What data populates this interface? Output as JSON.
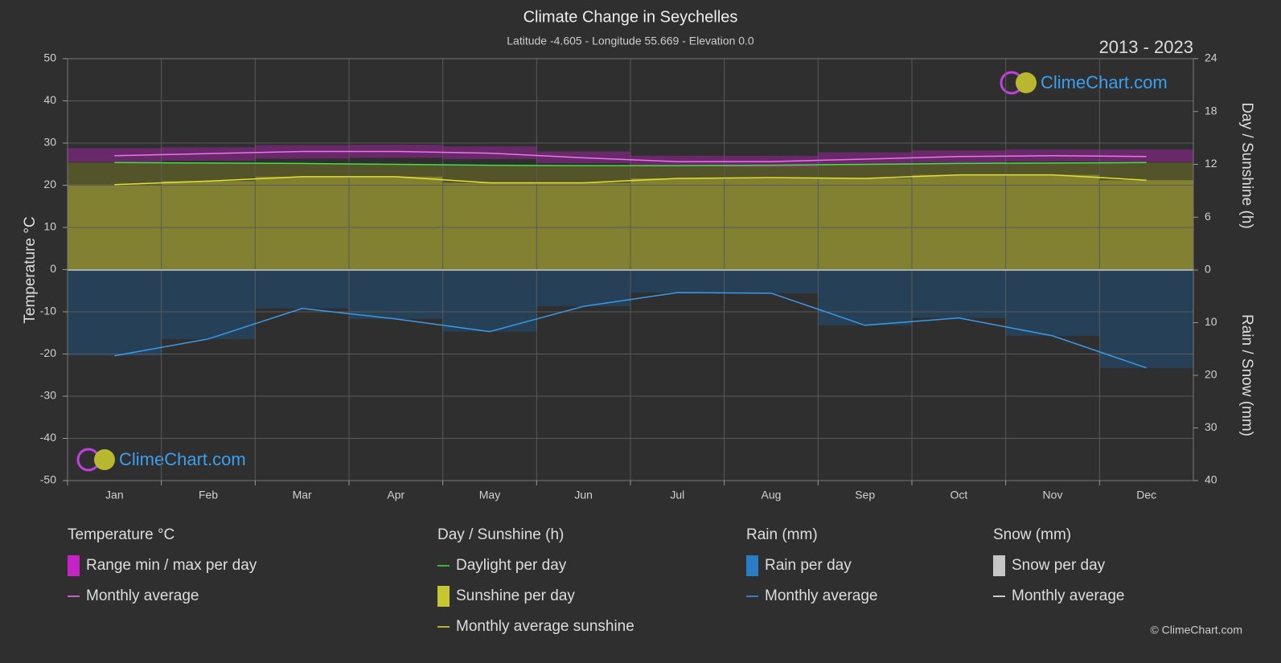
{
  "chart_data": {
    "type": "climate",
    "title": "Climate Change in Seychelles",
    "subtitle": "Latitude -4.605 - Longitude 55.669 - Elevation 0.0",
    "period": "2013 - 2023",
    "y_label": "Temperature °C",
    "y2_label": "Day / Sunshine (h)",
    "y3_label": "Rain / Snow (mm)",
    "categories": [
      "Jan",
      "Feb",
      "Mar",
      "Apr",
      "May",
      "Jun",
      "Jul",
      "Aug",
      "Sep",
      "Oct",
      "Nov",
      "Dec"
    ],
    "ylim": [
      -50,
      50
    ],
    "yticks": [
      -50,
      -40,
      -30,
      -20,
      -10,
      0,
      10,
      20,
      30,
      40,
      50
    ],
    "y2lim": [
      0,
      24
    ],
    "y2ticks": [
      0,
      6,
      12,
      18,
      24
    ],
    "y3lim": [
      0,
      40
    ],
    "y3ticks": [
      10,
      20,
      30,
      40
    ],
    "grid": true,
    "temperature_range": {
      "color": "#d020d0",
      "low": [
        25.5,
        25.8,
        26.3,
        26.5,
        26.2,
        25.2,
        24.5,
        24.3,
        24.8,
        25.3,
        25.6,
        25.5
      ],
      "high": [
        28.8,
        29.0,
        29.5,
        29.6,
        29.2,
        28.0,
        27.0,
        27.0,
        27.8,
        28.3,
        28.5,
        28.5
      ]
    },
    "series": [
      {
        "axis": "y2",
        "color": "#44dd44",
        "fill": "#5a5a2a",
        "values": [
          12.2,
          12.15,
          12.1,
          12.0,
          11.9,
          11.85,
          11.85,
          11.9,
          12.0,
          12.1,
          12.15,
          12.2
        ]
      },
      {
        "axis": "y2",
        "color": "#e0e030",
        "fill": "#8a8a32",
        "values": [
          9.7,
          10.1,
          10.6,
          10.6,
          9.9,
          9.9,
          10.4,
          10.5,
          10.4,
          10.8,
          10.8,
          10.2
        ]
      },
      {
        "axis": "y3",
        "color": "#3a9ae8",
        "fill": "#24445e",
        "values": [
          16.3,
          13.1,
          7.3,
          9.3,
          11.7,
          6.9,
          4.3,
          4.4,
          10.5,
          9.1,
          12.5,
          18.6
        ]
      },
      {
        "axis": "y",
        "color": "#f070f0",
        "values": [
          27.0,
          27.5,
          28.0,
          28.0,
          27.6,
          26.5,
          25.6,
          25.6,
          26.2,
          26.8,
          27.0,
          26.8
        ]
      }
    ],
    "legend": [
      {
        "title": "Temperature °C",
        "items": [
          {
            "label": "Range min / max per day",
            "color": "#e020e0",
            "style": "box"
          },
          {
            "label": "Monthly average",
            "color": "#f070f0",
            "style": "line"
          }
        ]
      },
      {
        "title": "Day / Sunshine (h)",
        "items": [
          {
            "label": "Daylight per day",
            "color": "#44dd44",
            "style": "line"
          },
          {
            "label": "Sunshine per day",
            "color": "#e0e030",
            "style": "box"
          },
          {
            "label": "Monthly average sunshine",
            "color": "#e0e030",
            "style": "line"
          }
        ]
      },
      {
        "title": "Rain (mm)",
        "items": [
          {
            "label": "Rain per day",
            "color": "#2a8ae0",
            "style": "box"
          },
          {
            "label": "Monthly average",
            "color": "#3a9ae8",
            "style": "line"
          }
        ]
      },
      {
        "title": "Snow (mm)",
        "items": [
          {
            "label": "Snow per day",
            "color": "#e0e0e0",
            "style": "box"
          },
          {
            "label": "Monthly average",
            "color": "#ffffff",
            "style": "line"
          }
        ]
      }
    ]
  },
  "watermark": "ClimeChart.com",
  "copyright": "© ClimeChart.com"
}
